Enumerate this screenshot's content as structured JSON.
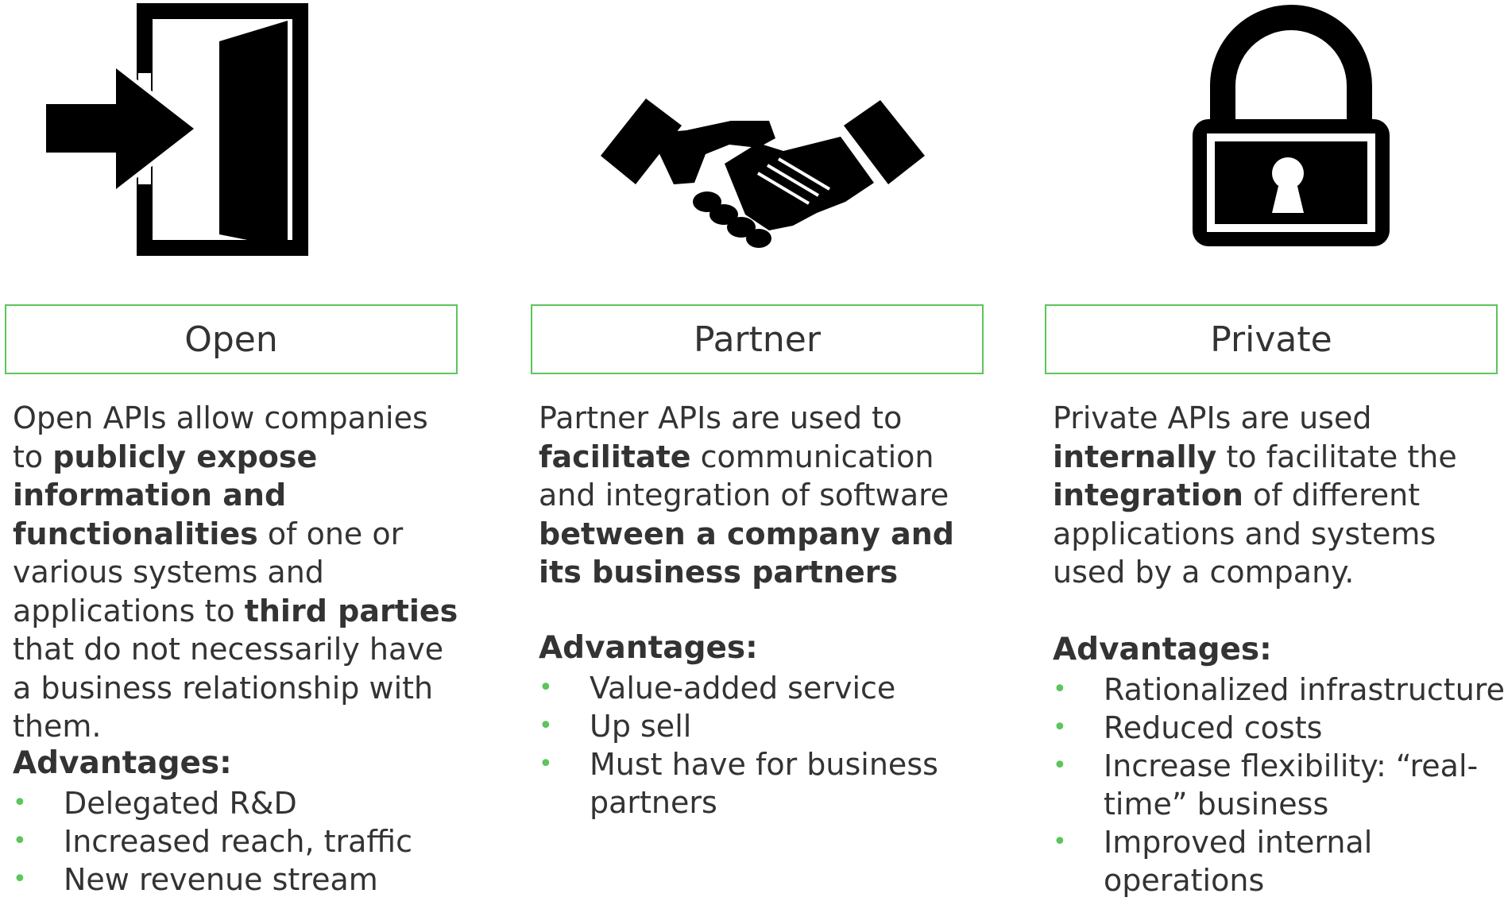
{
  "colors": {
    "accent": "#5cc55c",
    "text": "#333333",
    "icon": "#000000"
  },
  "columns": [
    {
      "icon": "door-enter-icon",
      "title": "Open",
      "description": [
        {
          "text": "Open APIs allow companies to ",
          "bold": false
        },
        {
          "text": "publicly expose information and functionalities",
          "bold": true
        },
        {
          "text": " of one or various systems and applications to ",
          "bold": false
        },
        {
          "text": "third parties",
          "bold": true
        },
        {
          "text": " that do not necessarily have a business relationship with them.",
          "bold": false
        }
      ],
      "advantages_title": "Advantages:",
      "advantages": [
        "Delegated R&D",
        "Increased reach, traffic",
        "New revenue stream"
      ]
    },
    {
      "icon": "handshake-icon",
      "title": "Partner",
      "description": [
        {
          "text": "Partner APIs are used to ",
          "bold": false
        },
        {
          "text": "facilitate",
          "bold": true
        },
        {
          "text": " communication and integration of software ",
          "bold": false
        },
        {
          "text": "between a company and its business partners",
          "bold": true
        }
      ],
      "advantages_title": "Advantages:",
      "advantages": [
        "Value-added service",
        "Up sell",
        "Must have for business partners"
      ]
    },
    {
      "icon": "padlock-icon",
      "title": "Private",
      "description": [
        {
          "text": "Private APIs are used ",
          "bold": false
        },
        {
          "text": "internally",
          "bold": true
        },
        {
          "text": " to facilitate the ",
          "bold": false
        },
        {
          "text": "integration",
          "bold": true
        },
        {
          "text": " of different applications and systems used by a company.",
          "bold": false
        }
      ],
      "advantages_title": "Advantages:",
      "advantages": [
        "Rationalized infrastructure",
        "Reduced costs",
        "Increase flexibility: “real-time” business",
        "Improved internal operations"
      ]
    }
  ]
}
